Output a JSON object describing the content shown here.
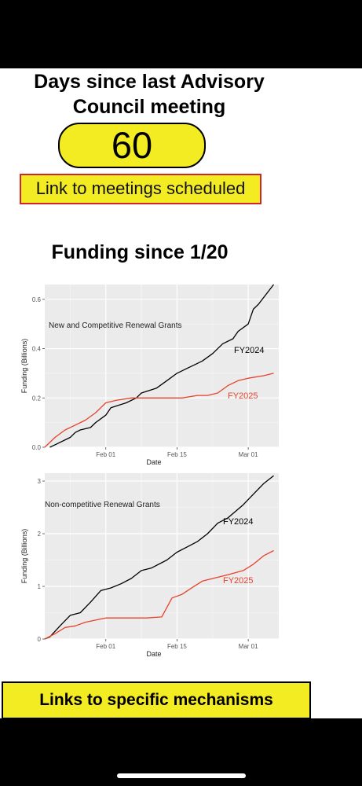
{
  "header": {
    "title_line1": "Days since last Advisory",
    "title_line2": "Council meeting"
  },
  "counter": {
    "value": "60"
  },
  "meetings_link": {
    "label": "Link to meetings scheduled"
  },
  "funding": {
    "title": "Funding since 1/20"
  },
  "mechanisms_link": {
    "label": "Links to specific mechanisms"
  },
  "colors": {
    "highlight": "#f3ec22",
    "link_border": "#d0252e",
    "fy2024": "#000000",
    "fy2025": "#e8412c",
    "plot_bg": "#ebebeb"
  },
  "chart_data": [
    {
      "type": "line",
      "title": "New and Competitive Renewal Grants",
      "xlabel": "Date",
      "ylabel": "Funding (Billions)",
      "xlim": [
        "2025-01-20",
        "2025-03-07"
      ],
      "ylim": [
        0,
        0.66
      ],
      "xticks": [
        "Feb 01",
        "Feb 15",
        "Mar 01"
      ],
      "xtick_dates": [
        "2025-02-01",
        "2025-02-15",
        "2025-03-01"
      ],
      "yticks": [
        "0.0",
        "0.2",
        "0.4",
        "0.6"
      ],
      "ytick_values": [
        0,
        0.2,
        0.4,
        0.6
      ],
      "grid": true,
      "series": [
        {
          "name": "FY2024",
          "color": "#000000",
          "x": [
            "2025-01-21",
            "2025-01-22",
            "2025-01-25",
            "2025-01-26",
            "2025-01-27",
            "2025-01-29",
            "2025-01-30",
            "2025-02-01",
            "2025-02-02",
            "2025-02-05",
            "2025-02-07",
            "2025-02-08",
            "2025-02-11",
            "2025-02-13",
            "2025-02-15",
            "2025-02-17",
            "2025-02-19",
            "2025-02-20",
            "2025-02-22",
            "2025-02-24",
            "2025-02-26",
            "2025-02-27",
            "2025-03-01",
            "2025-03-02",
            "2025-03-03",
            "2025-03-06"
          ],
          "y": [
            0.0,
            0.01,
            0.04,
            0.06,
            0.07,
            0.08,
            0.1,
            0.13,
            0.16,
            0.18,
            0.2,
            0.22,
            0.24,
            0.27,
            0.3,
            0.32,
            0.34,
            0.35,
            0.38,
            0.42,
            0.44,
            0.47,
            0.5,
            0.56,
            0.58,
            0.66
          ]
        },
        {
          "name": "FY2025",
          "color": "#e8412c",
          "x": [
            "2025-01-20",
            "2025-01-22",
            "2025-01-24",
            "2025-01-26",
            "2025-01-28",
            "2025-01-30",
            "2025-02-01",
            "2025-02-03",
            "2025-02-06",
            "2025-02-10",
            "2025-02-13",
            "2025-02-16",
            "2025-02-19",
            "2025-02-21",
            "2025-02-23",
            "2025-02-25",
            "2025-02-27",
            "2025-03-01",
            "2025-03-04",
            "2025-03-06"
          ],
          "y": [
            0.0,
            0.04,
            0.07,
            0.09,
            0.11,
            0.14,
            0.18,
            0.19,
            0.2,
            0.2,
            0.2,
            0.2,
            0.21,
            0.21,
            0.22,
            0.25,
            0.27,
            0.28,
            0.29,
            0.3
          ]
        }
      ]
    },
    {
      "type": "line",
      "title": "Non-competitive Renewal Grants",
      "xlabel": "Date",
      "ylabel": "Funding (Billions)",
      "xlim": [
        "2025-01-20",
        "2025-03-07"
      ],
      "ylim": [
        0,
        3.15
      ],
      "xticks": [
        "Feb 01",
        "Feb 15",
        "Mar 01"
      ],
      "xtick_dates": [
        "2025-02-01",
        "2025-02-15",
        "2025-03-01"
      ],
      "yticks": [
        "0",
        "1",
        "2",
        "3"
      ],
      "ytick_values": [
        0,
        1,
        2,
        3
      ],
      "grid": true,
      "series": [
        {
          "name": "FY2024",
          "color": "#000000",
          "x": [
            "2025-01-20",
            "2025-01-21",
            "2025-01-23",
            "2025-01-25",
            "2025-01-27",
            "2025-01-29",
            "2025-01-31",
            "2025-02-02",
            "2025-02-04",
            "2025-02-06",
            "2025-02-08",
            "2025-02-10",
            "2025-02-13",
            "2025-02-15",
            "2025-02-17",
            "2025-02-19",
            "2025-02-21",
            "2025-02-23",
            "2025-02-25",
            "2025-02-28",
            "2025-03-02",
            "2025-03-04",
            "2025-03-06"
          ],
          "y": [
            0.0,
            0.04,
            0.25,
            0.45,
            0.5,
            0.7,
            0.92,
            0.97,
            1.05,
            1.15,
            1.3,
            1.35,
            1.5,
            1.65,
            1.75,
            1.85,
            2.0,
            2.2,
            2.3,
            2.55,
            2.75,
            2.95,
            3.1
          ]
        },
        {
          "name": "FY2025",
          "color": "#e8412c",
          "x": [
            "2025-01-20",
            "2025-01-22",
            "2025-01-24",
            "2025-01-26",
            "2025-01-28",
            "2025-01-30",
            "2025-02-01",
            "2025-02-05",
            "2025-02-09",
            "2025-02-12",
            "2025-02-14",
            "2025-02-16",
            "2025-02-18",
            "2025-02-20",
            "2025-02-22",
            "2025-02-25",
            "2025-02-28",
            "2025-03-02",
            "2025-03-04",
            "2025-03-06"
          ],
          "y": [
            0.0,
            0.1,
            0.22,
            0.25,
            0.32,
            0.36,
            0.4,
            0.4,
            0.4,
            0.42,
            0.78,
            0.85,
            0.98,
            1.1,
            1.15,
            1.22,
            1.3,
            1.42,
            1.58,
            1.68
          ]
        }
      ]
    }
  ]
}
